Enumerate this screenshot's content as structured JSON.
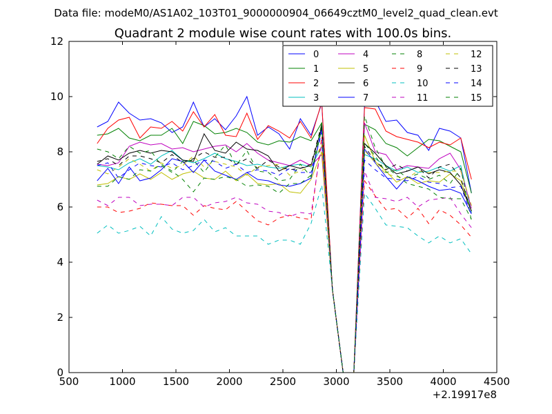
{
  "suptitle": "Data file: modeM0/AS1A02_103T01_9000000904_06649cztM0_level2_quad_clean.evt",
  "chart_data": {
    "type": "line",
    "title": "Quadrant 2 module wise count rates with 100.0s bins.",
    "xlabel": "",
    "ylabel": "",
    "x_offset_label": "+2.19917e8",
    "xlim": [
      500,
      4500
    ],
    "ylim": [
      0,
      12
    ],
    "xticks": [
      500,
      1000,
      1500,
      2000,
      2500,
      3000,
      3500,
      4000,
      4500
    ],
    "yticks": [
      0,
      2,
      4,
      6,
      8,
      10,
      12
    ],
    "grid": false,
    "legend_position": "top-right",
    "x": [
      763,
      863,
      963,
      1063,
      1163,
      1263,
      1363,
      1463,
      1563,
      1663,
      1763,
      1863,
      1963,
      2063,
      2163,
      2263,
      2363,
      2463,
      2563,
      2663,
      2763,
      2863,
      2963,
      3063,
      3163,
      3263,
      3363,
      3463,
      3563,
      3663,
      3763,
      3863,
      3963,
      4063,
      4163,
      4263
    ],
    "series": [
      {
        "name": "0",
        "color": "#0000ff",
        "dash": "solid",
        "values": [
          8.9,
          9.1,
          9.8,
          9.4,
          9.15,
          9.2,
          9.05,
          8.7,
          8.9,
          9.8,
          8.9,
          9.2,
          8.8,
          9.3,
          10.0,
          8.6,
          8.9,
          8.65,
          8.1,
          9.2,
          8.6,
          9.75,
          3.0,
          0.0,
          0.0,
          9.7,
          9.85,
          9.1,
          9.15,
          8.7,
          8.6,
          8.05,
          8.85,
          8.75,
          8.5,
          6.5
        ]
      },
      {
        "name": "1",
        "color": "#008000",
        "dash": "solid",
        "values": [
          8.6,
          8.65,
          8.85,
          8.5,
          8.4,
          8.6,
          8.6,
          8.85,
          8.3,
          9.1,
          8.95,
          8.65,
          8.7,
          8.85,
          8.7,
          8.35,
          8.25,
          8.4,
          8.35,
          8.55,
          8.4,
          9.05,
          3.0,
          0.0,
          0.0,
          9.0,
          8.8,
          8.3,
          8.15,
          7.85,
          8.15,
          8.45,
          8.4,
          8.2,
          8.0,
          6.5
        ]
      },
      {
        "name": "2",
        "color": "#ff0000",
        "dash": "solid",
        "values": [
          8.3,
          8.85,
          9.15,
          9.25,
          8.5,
          8.9,
          8.85,
          9.1,
          8.75,
          9.45,
          8.9,
          9.35,
          8.6,
          8.55,
          9.4,
          8.45,
          8.95,
          8.75,
          8.5,
          9.1,
          8.5,
          9.8,
          3.0,
          0.0,
          0.0,
          9.6,
          9.55,
          8.75,
          8.55,
          8.45,
          8.35,
          8.15,
          8.35,
          8.25,
          8.5,
          7.0
        ]
      },
      {
        "name": "3",
        "color": "#00bfbf",
        "dash": "solid",
        "values": [
          7.5,
          7.45,
          7.35,
          7.6,
          7.75,
          7.55,
          7.85,
          8.05,
          7.7,
          7.6,
          7.75,
          7.95,
          7.75,
          7.65,
          7.5,
          7.55,
          7.45,
          7.4,
          7.5,
          7.55,
          7.45,
          8.2,
          3.0,
          0.0,
          0.0,
          7.9,
          7.75,
          7.5,
          7.3,
          7.45,
          7.25,
          7.3,
          7.45,
          7.3,
          7.5,
          5.8
        ]
      },
      {
        "name": "4",
        "color": "#bf00bf",
        "dash": "solid",
        "values": [
          7.55,
          7.5,
          7.6,
          8.2,
          8.35,
          8.25,
          8.3,
          8.1,
          8.15,
          8.0,
          8.1,
          8.2,
          8.25,
          8.0,
          8.3,
          7.95,
          7.7,
          7.6,
          7.5,
          7.7,
          7.5,
          7.9,
          3.0,
          0.0,
          0.0,
          9.05,
          8.0,
          7.9,
          7.35,
          7.5,
          7.45,
          7.4,
          7.75,
          7.95,
          7.35,
          5.95
        ]
      },
      {
        "name": "5",
        "color": "#bfbf00",
        "dash": "solid",
        "values": [
          6.8,
          6.85,
          7.1,
          7.0,
          7.2,
          7.0,
          7.25,
          7.0,
          7.2,
          7.3,
          7.05,
          7.0,
          7.3,
          6.95,
          7.2,
          6.85,
          6.8,
          6.85,
          6.55,
          6.5,
          7.0,
          8.0,
          3.0,
          0.0,
          0.0,
          8.6,
          7.65,
          7.3,
          6.9,
          7.1,
          6.85,
          6.95,
          6.9,
          7.2,
          6.95,
          5.85
        ]
      },
      {
        "name": "6",
        "color": "#000000",
        "dash": "solid",
        "values": [
          7.55,
          7.85,
          7.7,
          7.95,
          8.05,
          7.95,
          8.05,
          8.0,
          7.7,
          7.65,
          8.65,
          8.05,
          7.95,
          8.35,
          8.1,
          8.05,
          7.85,
          7.3,
          7.5,
          7.4,
          7.5,
          8.9,
          3.0,
          0.0,
          0.0,
          8.3,
          7.95,
          7.5,
          7.2,
          7.3,
          7.45,
          7.2,
          7.35,
          7.25,
          6.8,
          5.85
        ]
      },
      {
        "name": "7",
        "color": "#0000ff",
        "dash": "solid",
        "values": [
          6.95,
          7.4,
          6.85,
          7.45,
          6.95,
          7.05,
          7.35,
          7.75,
          7.65,
          7.25,
          7.7,
          7.3,
          7.15,
          7.0,
          7.25,
          7.0,
          6.95,
          6.8,
          6.75,
          6.85,
          7.05,
          8.85,
          3.0,
          0.0,
          0.0,
          8.1,
          7.6,
          7.1,
          6.65,
          7.1,
          6.95,
          6.75,
          6.6,
          6.65,
          6.5,
          5.75
        ]
      },
      {
        "name": "8",
        "color": "#008000",
        "dash": "dashed",
        "values": [
          8.1,
          8.0,
          7.75,
          8.2,
          7.95,
          8.05,
          7.5,
          7.25,
          7.65,
          7.7,
          7.25,
          7.8,
          8.25,
          7.5,
          8.05,
          7.3,
          7.25,
          6.95,
          7.0,
          7.55,
          7.1,
          8.85,
          3.0,
          0.0,
          0.0,
          8.3,
          7.85,
          7.25,
          7.35,
          7.05,
          7.2,
          7.0,
          7.15,
          6.85,
          7.4,
          5.5
        ]
      },
      {
        "name": "9",
        "color": "#ff0000",
        "dash": "dashed",
        "values": [
          6.0,
          6.0,
          5.8,
          5.85,
          5.95,
          6.15,
          6.1,
          6.05,
          6.05,
          5.7,
          6.05,
          5.95,
          5.9,
          6.2,
          5.85,
          5.5,
          5.35,
          5.6,
          5.7,
          5.6,
          5.55,
          8.55,
          3.0,
          0.0,
          0.0,
          6.95,
          6.4,
          5.9,
          5.95,
          5.6,
          5.95,
          5.4,
          5.9,
          5.7,
          5.35,
          4.9
        ]
      },
      {
        "name": "10",
        "color": "#00bfbf",
        "dash": "dashed",
        "values": [
          5.05,
          5.35,
          5.05,
          5.15,
          5.3,
          4.95,
          5.65,
          5.2,
          5.05,
          5.15,
          5.55,
          5.1,
          5.25,
          4.95,
          4.95,
          4.95,
          4.65,
          4.8,
          4.8,
          4.65,
          5.4,
          6.8,
          3.0,
          0.0,
          0.0,
          6.5,
          5.95,
          5.35,
          5.3,
          5.25,
          4.95,
          4.7,
          4.95,
          4.7,
          4.85,
          4.3
        ]
      },
      {
        "name": "11",
        "color": "#bf00bf",
        "dash": "dashed",
        "values": [
          6.25,
          6.05,
          6.35,
          6.35,
          6.05,
          6.1,
          6.1,
          6.05,
          6.35,
          6.35,
          6.0,
          6.15,
          6.2,
          6.35,
          6.15,
          6.1,
          5.85,
          5.8,
          5.65,
          5.8,
          5.75,
          8.35,
          3.0,
          0.0,
          0.0,
          7.3,
          6.35,
          6.3,
          6.2,
          6.35,
          6.0,
          6.25,
          6.3,
          6.35,
          5.75,
          5.25
        ]
      },
      {
        "name": "12",
        "color": "#bfbf00",
        "dash": "dashed",
        "values": [
          7.35,
          7.2,
          7.45,
          7.75,
          7.55,
          7.3,
          7.6,
          7.4,
          7.5,
          7.85,
          7.45,
          7.65,
          7.55,
          7.45,
          7.15,
          7.45,
          7.5,
          7.55,
          7.15,
          7.3,
          7.5,
          8.25,
          3.0,
          0.0,
          0.0,
          8.05,
          7.6,
          7.2,
          7.1,
          7.05,
          7.3,
          7.25,
          7.25,
          7.3,
          7.3,
          6.05
        ]
      },
      {
        "name": "13",
        "color": "#000000",
        "dash": "dashed",
        "values": [
          7.65,
          7.75,
          7.5,
          7.85,
          7.85,
          7.75,
          7.6,
          7.9,
          7.6,
          7.75,
          8.0,
          7.8,
          7.8,
          7.55,
          7.75,
          7.4,
          7.7,
          7.45,
          7.35,
          7.4,
          7.55,
          9.0,
          3.0,
          0.0,
          0.0,
          8.2,
          7.65,
          7.35,
          7.55,
          7.3,
          7.45,
          7.05,
          7.45,
          7.55,
          7.05,
          5.8
        ]
      },
      {
        "name": "14",
        "color": "#0000ff",
        "dash": "dashed",
        "values": [
          7.5,
          7.6,
          7.05,
          7.35,
          7.6,
          7.5,
          7.45,
          7.6,
          7.35,
          7.5,
          7.7,
          7.65,
          7.4,
          7.55,
          7.25,
          7.35,
          7.3,
          7.15,
          7.4,
          7.25,
          7.25,
          8.7,
          3.0,
          0.0,
          0.0,
          7.7,
          7.35,
          7.05,
          7.0,
          6.95,
          7.1,
          6.9,
          6.85,
          6.7,
          6.75,
          5.7
        ]
      },
      {
        "name": "15",
        "color": "#008000",
        "dash": "dashed",
        "values": [
          6.75,
          6.75,
          7.1,
          7.0,
          7.35,
          7.3,
          7.55,
          7.3,
          7.0,
          6.55,
          7.05,
          7.0,
          7.1,
          7.0,
          6.75,
          6.8,
          6.75,
          6.5,
          6.85,
          6.85,
          7.15,
          9.05,
          3.0,
          0.0,
          0.0,
          9.3,
          8.15,
          7.45,
          7.15,
          6.85,
          6.75,
          6.65,
          6.35,
          6.3,
          6.3,
          5.55
        ]
      }
    ]
  }
}
